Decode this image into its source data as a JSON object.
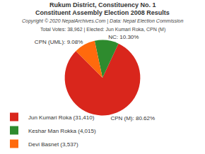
{
  "chart_data": {
    "type": "pie",
    "title": "Rukum District, Constituency No. 1",
    "subtitle": "Constituent Assembly Election 2008 Results",
    "annotations": [
      "Copyright © 2020 NepalArchives.Com | Data: Nepal Election Commission",
      "Total Votes: 38,962 | Elected: Jun Kumari Roka, CPN (M)"
    ],
    "categories": [
      "Jun Kumari Roka (31,410)",
      "Keshar Man Rokka (4,015)",
      "Devi Basnet (3,537)"
    ],
    "values": [
      80.62,
      10.3,
      9.08
    ],
    "value_labels": [
      "CPN (M): 80.62%",
      "NC: 10.30%",
      "CPN (UML): 9.08%"
    ],
    "colors": [
      "#d9261c",
      "#2e8b2e",
      "#ff6a0d"
    ],
    "data_labels": true,
    "legend": "bottom"
  }
}
